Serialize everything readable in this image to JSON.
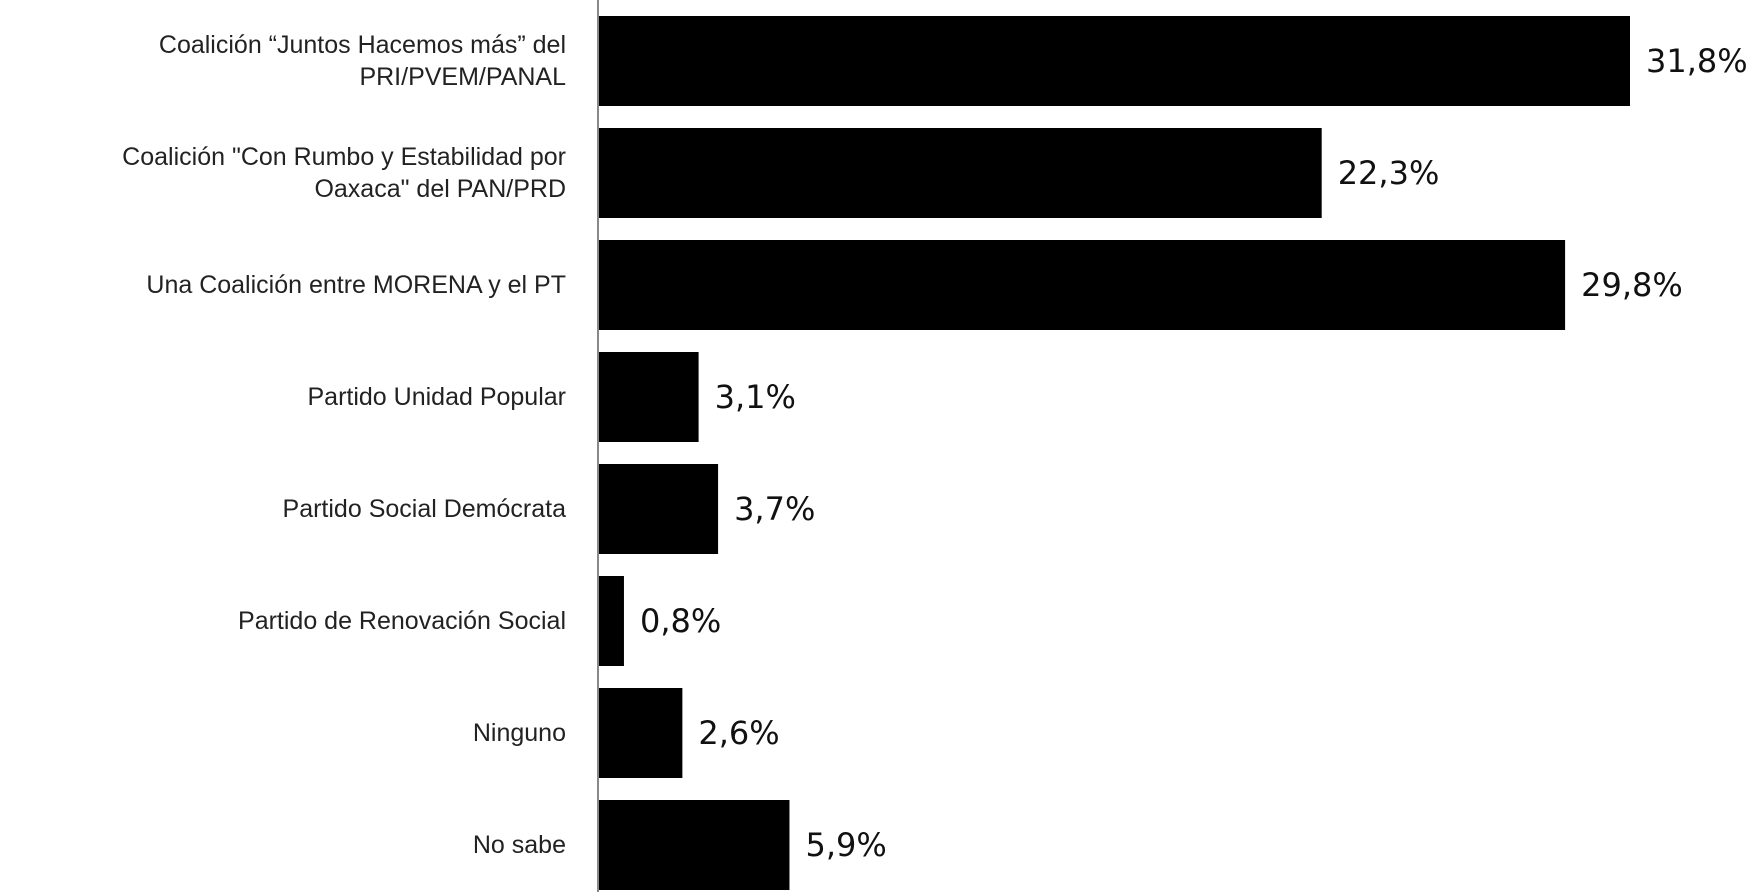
{
  "chart_data": {
    "type": "bar",
    "orientation": "horizontal",
    "categories": [
      [
        "Coalición “Juntos Hacemos más” del",
        "PRI/PVEM/PANAL"
      ],
      [
        "Coalición  \"Con Rumbo y Estabilidad por",
        "Oaxaca\" del PAN/PRD"
      ],
      [
        "Una Coalición entre MORENA y el PT"
      ],
      [
        "Partido Unidad Popular"
      ],
      [
        "Partido Social Demócrata"
      ],
      [
        "Partido de Renovación Social"
      ],
      [
        "Ninguno"
      ],
      [
        "No sabe"
      ]
    ],
    "values": [
      31.8,
      22.3,
      29.8,
      3.1,
      3.7,
      0.8,
      2.6,
      5.9
    ],
    "data_labels": [
      "31,8%",
      "22,3%",
      "29,8%",
      "3,1%",
      "3,7%",
      "0,8%",
      "2,6%",
      "5,9%"
    ],
    "title": "",
    "xlabel": "",
    "ylabel": "",
    "xlim": [
      0,
      31.8
    ],
    "grid": false,
    "legend": "none",
    "bar_color": "#000000",
    "axis_color": "#888888"
  }
}
